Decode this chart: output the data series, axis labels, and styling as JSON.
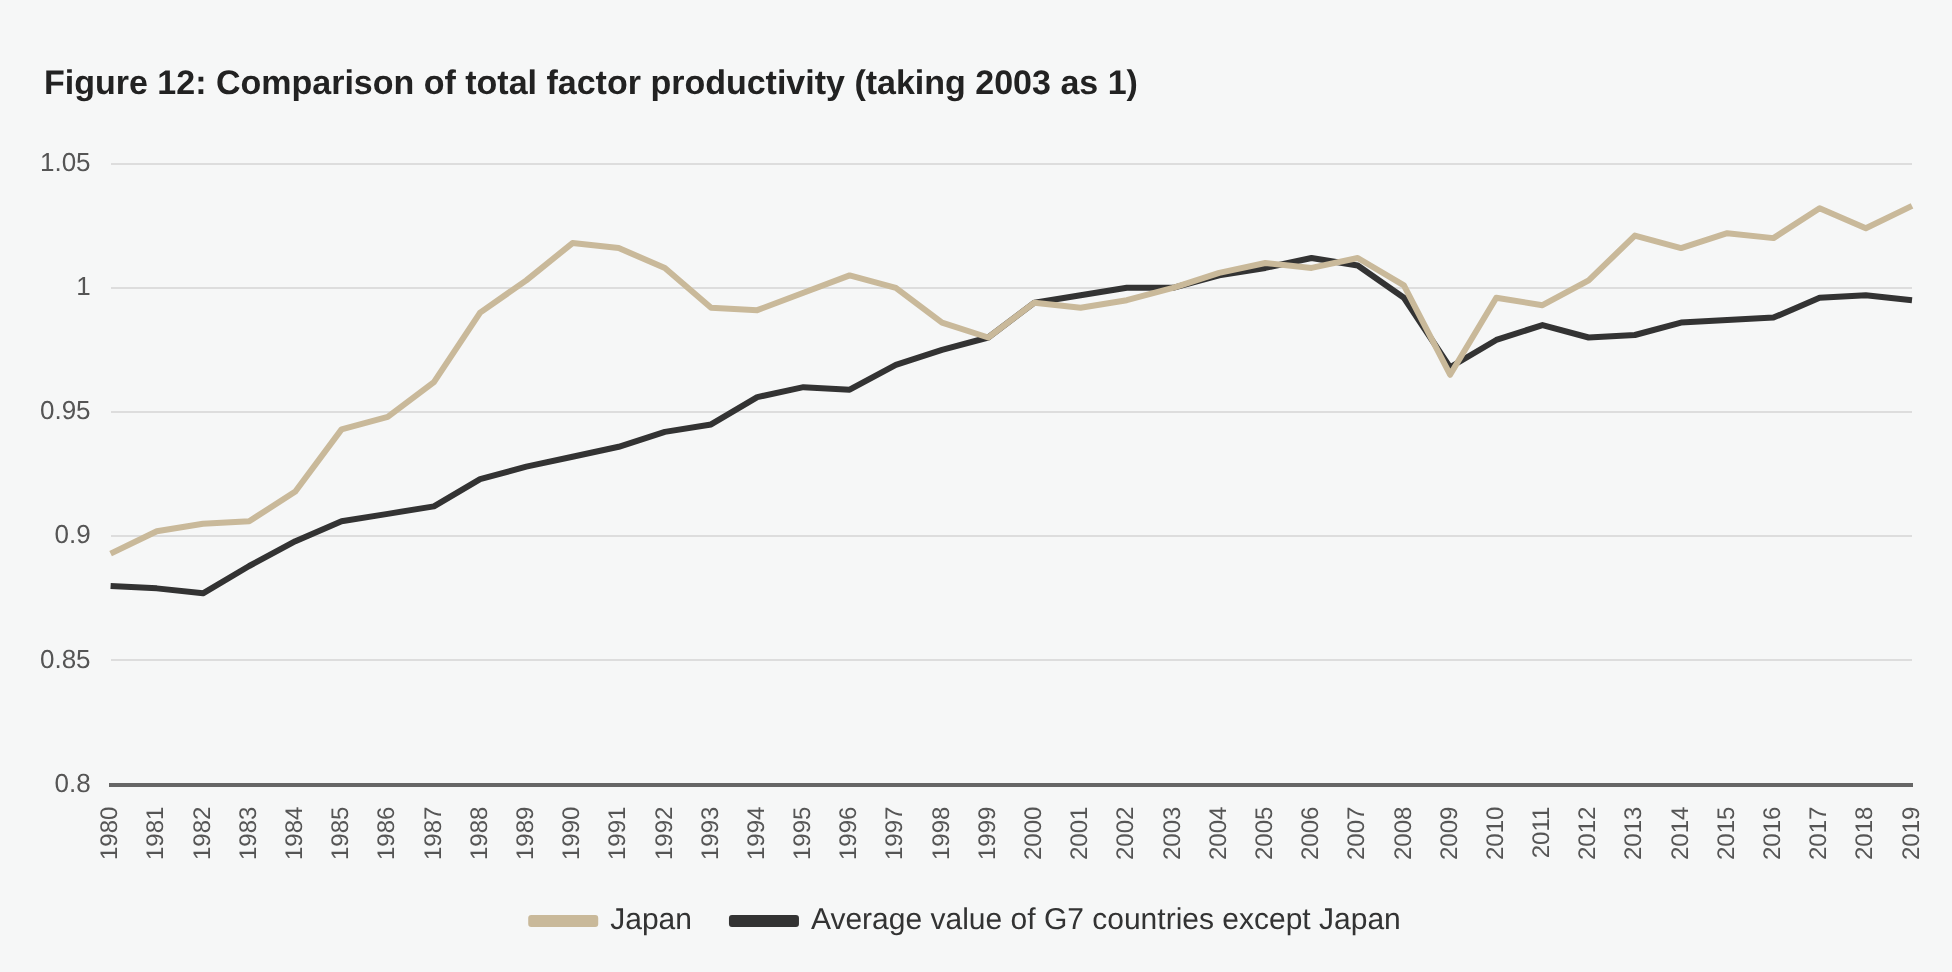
{
  "chart_data": {
    "type": "line",
    "title": "Figure 12: Comparison of total factor productivity (taking 2003 as 1)",
    "categories": [
      "1980",
      "1981",
      "1982",
      "1983",
      "1984",
      "1985",
      "1986",
      "1987",
      "1988",
      "1989",
      "1990",
      "1991",
      "1992",
      "1993",
      "1994",
      "1995",
      "1996",
      "1997",
      "1998",
      "1999",
      "2000",
      "2001",
      "2002",
      "2003",
      "2004",
      "2005",
      "2006",
      "2007",
      "2008",
      "2009",
      "2010",
      "2011",
      "2012",
      "2013",
      "2014",
      "2015",
      "2016",
      "2017",
      "2018",
      "2019"
    ],
    "series": [
      {
        "name": "Japan",
        "color": "#c9b99a",
        "values": [
          0.893,
          0.902,
          0.905,
          0.906,
          0.918,
          0.943,
          0.948,
          0.962,
          0.99,
          1.003,
          1.018,
          1.016,
          1.008,
          0.992,
          0.991,
          0.998,
          1.005,
          1.0,
          0.986,
          0.98,
          0.994,
          0.992,
          0.995,
          1.0,
          1.006,
          1.01,
          1.008,
          1.012,
          1.001,
          0.965,
          0.996,
          0.993,
          1.003,
          1.021,
          1.016,
          1.022,
          1.02,
          1.032,
          1.024,
          1.033
        ]
      },
      {
        "name": "Average value of G7 countries except Japan",
        "color": "#333333",
        "values": [
          0.88,
          0.879,
          0.877,
          0.888,
          0.898,
          0.906,
          0.909,
          0.912,
          0.923,
          0.928,
          0.932,
          0.936,
          0.942,
          0.945,
          0.956,
          0.96,
          0.959,
          0.969,
          0.975,
          0.98,
          0.994,
          0.997,
          1.0,
          1.0,
          1.005,
          1.008,
          1.012,
          1.009,
          0.996,
          0.968,
          0.979,
          0.985,
          0.98,
          0.981,
          0.986,
          0.987,
          0.988,
          0.996,
          0.997,
          0.995
        ]
      }
    ],
    "ylim": [
      0.8,
      1.05
    ],
    "yticks": [
      0.8,
      0.85,
      0.9,
      0.95,
      1,
      1.05
    ],
    "grid": "y",
    "legend": "bottom",
    "marker": "none",
    "line_style": "solid"
  }
}
